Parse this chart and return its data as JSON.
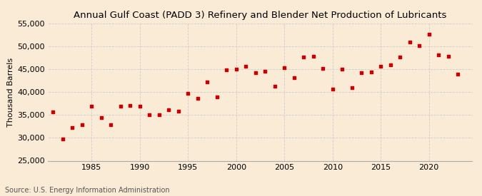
{
  "title": "Annual Gulf Coast (PADD 3) Refinery and Blender Net Production of Lubricants",
  "ylabel": "Thousand Barrels",
  "source": "Source: U.S. Energy Information Administration",
  "background_color": "#faebd7",
  "plot_bg_color": "#faebd7",
  "marker_color": "#cc0000",
  "years": [
    1981,
    1982,
    1983,
    1984,
    1985,
    1986,
    1987,
    1988,
    1989,
    1990,
    1991,
    1992,
    1993,
    1994,
    1995,
    1996,
    1997,
    1998,
    1999,
    2000,
    2001,
    2002,
    2003,
    2004,
    2005,
    2006,
    2007,
    2008,
    2009,
    2010,
    2011,
    2012,
    2013,
    2014,
    2015,
    2016,
    2017,
    2018,
    2019,
    2020,
    2021,
    2022,
    2023
  ],
  "values": [
    35700,
    29700,
    32200,
    32800,
    37000,
    34400,
    32900,
    37000,
    37100,
    36900,
    35000,
    35000,
    36200,
    35800,
    39800,
    38600,
    42200,
    39000,
    44900,
    45000,
    45700,
    44300,
    44500,
    41300,
    45300,
    43100,
    47700,
    47900,
    45200,
    40700,
    45100,
    40900,
    44200,
    44400,
    45700,
    45900,
    47700,
    51000,
    50100,
    52700,
    48100,
    47900,
    44000
  ],
  "ylim": [
    25000,
    55000
  ],
  "yticks": [
    25000,
    30000,
    35000,
    40000,
    45000,
    50000,
    55000
  ],
  "xticks": [
    1985,
    1990,
    1995,
    2000,
    2005,
    2010,
    2015,
    2020
  ],
  "xlim": [
    1980.5,
    2024.5
  ],
  "grid_color": "#cccccc",
  "title_fontsize": 9.5,
  "label_fontsize": 8,
  "tick_fontsize": 8,
  "source_fontsize": 7
}
